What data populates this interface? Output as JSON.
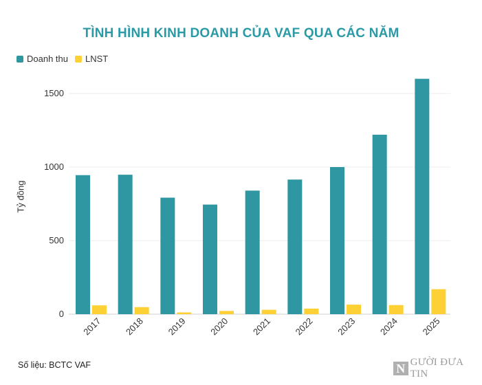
{
  "chart_data": {
    "type": "bar",
    "title": "TÌNH HÌNH KINH DOANH CỦA VAF QUA CÁC NĂM",
    "ylabel": "Tỷ đồng",
    "xlabel": "",
    "categories": [
      "2017",
      "2018",
      "2019",
      "2020",
      "2021",
      "2022",
      "2023",
      "2024",
      "2025"
    ],
    "series": [
      {
        "name": "Doanh thu",
        "color": "#2f97a1",
        "values": [
          945,
          948,
          792,
          745,
          840,
          915,
          1000,
          1220,
          1600
        ]
      },
      {
        "name": "LNST",
        "color": "#fdd135",
        "values": [
          60,
          48,
          12,
          22,
          30,
          38,
          65,
          62,
          170
        ]
      }
    ],
    "ylim": [
      0,
      1600
    ],
    "yticks": [
      0,
      500,
      1000,
      1500
    ],
    "grid": true,
    "legend": "top-left"
  },
  "source": "Số liệu: BCTC VAF",
  "logo": {
    "mark": "N",
    "text": "GƯỜI ĐƯA TIN"
  }
}
